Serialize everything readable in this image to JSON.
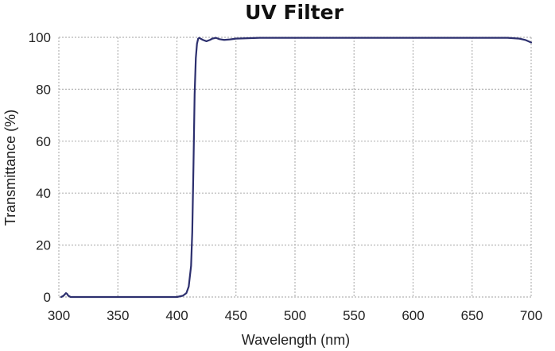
{
  "chart_data": {
    "type": "line",
    "title": "UV Filter",
    "xlabel": "Wavelength (nm)",
    "ylabel": "Transmittance (%)",
    "xlim": [
      300,
      700
    ],
    "ylim": [
      0,
      100
    ],
    "xticks": [
      300,
      350,
      400,
      450,
      500,
      550,
      600,
      650,
      700
    ],
    "yticks": [
      0,
      20,
      40,
      60,
      80,
      100
    ],
    "grid": true,
    "legend": "none",
    "series": [
      {
        "color": "#2c2f6e",
        "x": [
          302,
          304,
          306,
          307,
          308,
          310,
          315,
          330,
          350,
          370,
          390,
          400,
          405,
          408,
          410,
          412,
          413,
          414,
          415,
          416,
          417,
          418,
          419,
          420,
          422,
          425,
          428,
          430,
          433,
          436,
          440,
          445,
          450,
          470,
          500,
          550,
          600,
          650,
          680,
          690,
          695,
          700
        ],
        "y": [
          0,
          0.5,
          1.5,
          1.2,
          0.5,
          0,
          0,
          0,
          0,
          0,
          0,
          0,
          0.5,
          1.5,
          4,
          12,
          25,
          50,
          78,
          92,
          97.5,
          99.5,
          99.8,
          99.5,
          99,
          98.5,
          99,
          99.5,
          99.8,
          99.3,
          99,
          99.2,
          99.5,
          99.8,
          99.8,
          99.8,
          99.8,
          99.8,
          99.8,
          99.5,
          99,
          98
        ]
      }
    ]
  }
}
